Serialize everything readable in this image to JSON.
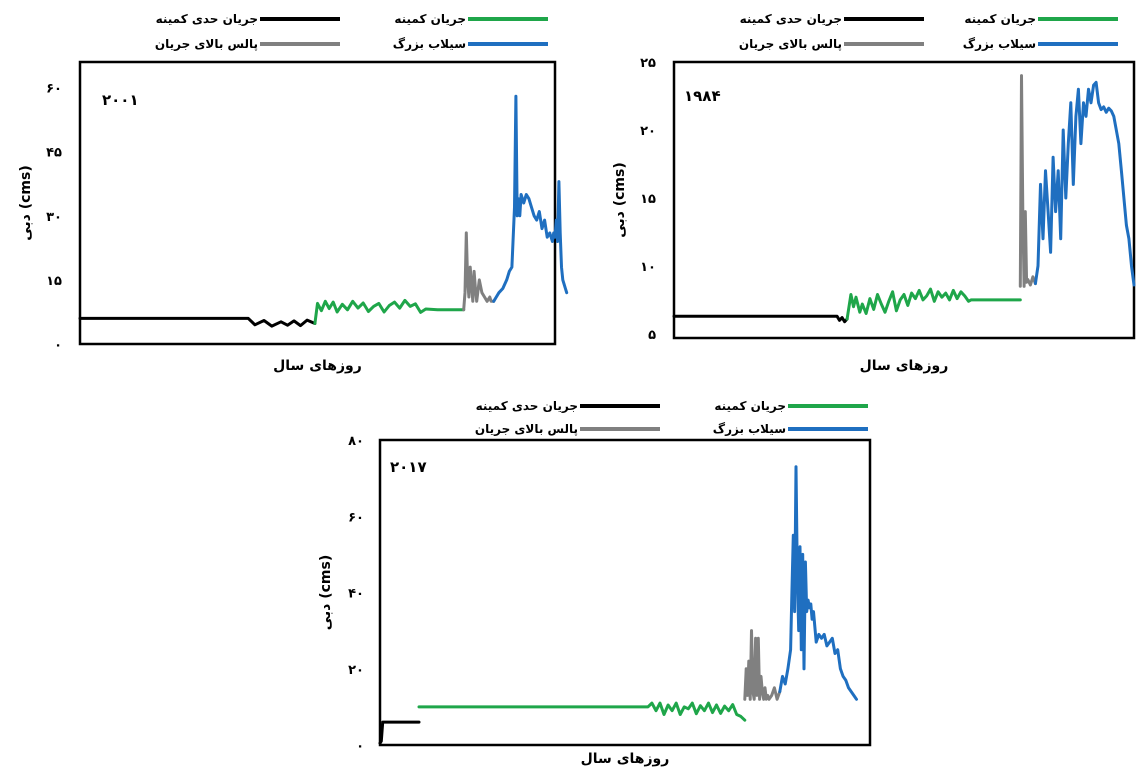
{
  "legend_labels": {
    "extreme_low": "جریان حدی کمینه",
    "low": "جریان کمینه",
    "high_pulse": "پالس بالای جریان",
    "large_flood": "سیلاب بزرگ"
  },
  "colors": {
    "extreme_low": "#000000",
    "low": "#1fa64a",
    "high_pulse": "#808080",
    "large_flood": "#1f6fc0"
  },
  "chart_data": [
    {
      "type": "line",
      "year_label": "۲۰۰۱",
      "title": "",
      "xlabel": "روزهای سال",
      "ylabel": "دبی (cms)",
      "ylim": [
        0,
        66
      ],
      "y_ticks": [
        0,
        15,
        30,
        45,
        60
      ],
      "y_tick_labels": [
        "۰",
        "۱۵",
        "۳۰",
        "۴۵",
        "۶۰"
      ],
      "xlim": [
        1,
        365
      ],
      "grid": false,
      "legend_position": "top",
      "series": [
        {
          "key": "extreme_low",
          "x": [
            1,
            130,
            135,
            142,
            148,
            155,
            160,
            165,
            170,
            175,
            181
          ],
          "y": [
            6,
            6,
            4.5,
            5.5,
            4.2,
            5.2,
            4.4,
            5.4,
            4.3,
            5.6,
            4.8
          ]
        },
        {
          "key": "low",
          "x": [
            181,
            183,
            186,
            189,
            192,
            195,
            198,
            202,
            206,
            210,
            214,
            218,
            222,
            226,
            230,
            234,
            238,
            242,
            246,
            250,
            254,
            258,
            262,
            266,
            275,
            290,
            295
          ],
          "y": [
            4.8,
            9.5,
            7.8,
            10,
            8.3,
            9.8,
            7.5,
            9.3,
            8,
            10,
            8.4,
            9.6,
            7.6,
            8.8,
            9.5,
            7.5,
            9,
            9.8,
            8.4,
            10.2,
            8.8,
            9.4,
            7.4,
            8.2,
            8,
            8,
            8
          ]
        },
        {
          "key": "high_pulse",
          "x": [
            295,
            296,
            297,
            298,
            299,
            300,
            301,
            302,
            303,
            304,
            305,
            307,
            309,
            311,
            313,
            315,
            316,
            318
          ],
          "y": [
            8,
            12,
            26,
            15,
            11,
            18,
            14,
            10,
            17,
            13,
            10,
            15,
            12,
            11,
            10,
            11,
            10,
            10
          ]
        },
        {
          "key": "large_flood",
          "x": [
            318,
            320,
            322,
            325,
            328,
            330,
            332,
            334,
            335,
            336,
            337,
            338,
            339,
            341,
            343,
            345,
            347,
            349,
            351,
            353,
            355,
            357,
            359,
            361,
            363,
            364,
            365,
            366,
            367,
            368,
            369,
            370,
            371,
            372,
            373,
            374
          ],
          "y": [
            10,
            11,
            12,
            13,
            15,
            17,
            18,
            32,
            58,
            30,
            34,
            30,
            35,
            33,
            35,
            34,
            32,
            30,
            29,
            31,
            27,
            29,
            25,
            26,
            24,
            26,
            25,
            29,
            24,
            38,
            26,
            18,
            15,
            14,
            13,
            12
          ]
        }
      ]
    },
    {
      "type": "line",
      "year_label": "۱۹۸۴",
      "title": "",
      "xlabel": "روزهای سال",
      "ylabel": "دبی (cms)",
      "ylim": [
        4.7,
        25
      ],
      "y_ticks": [
        5,
        10,
        15,
        20,
        25
      ],
      "y_tick_labels": [
        "۵",
        "۱۰",
        "۱۵",
        "۲۰",
        "۲۵"
      ],
      "xlim": [
        1,
        365
      ],
      "grid": false,
      "legend_position": "top",
      "series": [
        {
          "key": "extreme_low",
          "x": [
            1,
            130,
            132,
            134,
            136,
            138
          ],
          "y": [
            6.3,
            6.3,
            6.0,
            6.2,
            5.9,
            6.1
          ]
        },
        {
          "key": "low",
          "x": [
            138,
            141,
            143,
            145,
            148,
            150,
            153,
            156,
            159,
            162,
            165,
            168,
            171,
            174,
            177,
            180,
            183,
            186,
            189,
            192,
            195,
            198,
            201,
            204,
            207,
            210,
            213,
            216,
            219,
            222,
            225,
            228,
            231,
            234,
            236,
            245,
            275
          ],
          "y": [
            6.1,
            7.9,
            7.0,
            7.7,
            6.6,
            7.2,
            6.5,
            7.6,
            6.8,
            7.9,
            7.2,
            6.6,
            7.4,
            8.1,
            6.7,
            7.5,
            7.9,
            7.1,
            8.0,
            7.6,
            8.2,
            7.5,
            7.8,
            8.3,
            7.4,
            8.1,
            7.7,
            8.0,
            7.5,
            8.2,
            7.6,
            8.1,
            7.8,
            7.4,
            7.5,
            7.5,
            7.5
          ]
        },
        {
          "key": "high_pulse",
          "x": [
            275,
            276,
            277,
            278,
            279,
            280,
            281,
            283,
            285,
            287
          ],
          "y": [
            8.5,
            24,
            14,
            8.5,
            14,
            8.8,
            9.0,
            8.6,
            9.2,
            8.7
          ]
        },
        {
          "key": "large_flood",
          "x": [
            287,
            289,
            291,
            293,
            295,
            297,
            299,
            301,
            303,
            305,
            307,
            309,
            311,
            313,
            315,
            317,
            319,
            321,
            323,
            325,
            327,
            329,
            331,
            333,
            335,
            337,
            339,
            341,
            343,
            345,
            347,
            349,
            351,
            353,
            355,
            357,
            359,
            361,
            363,
            365
          ],
          "y": [
            8.7,
            10,
            16,
            12,
            17,
            14,
            11,
            18,
            14,
            17,
            12,
            20,
            15,
            19,
            22,
            16,
            21,
            23,
            19,
            22,
            21,
            23,
            22,
            23.3,
            23.5,
            22,
            21.5,
            21.7,
            21.3,
            21.6,
            21.4,
            21,
            20,
            19,
            17,
            15,
            13,
            12,
            10,
            8.6
          ]
        }
      ]
    },
    {
      "type": "line",
      "year_label": "۲۰۱۷",
      "title": "",
      "xlabel": "روزهای سال",
      "ylabel": "دبی (cms)",
      "ylim": [
        0,
        80
      ],
      "y_ticks": [
        0,
        20,
        40,
        60,
        80
      ],
      "y_tick_labels": [
        "۰",
        "۲۰",
        "۴۰",
        "۶۰",
        "۸۰"
      ],
      "xlim": [
        1,
        365
      ],
      "grid": false,
      "legend_position": "top",
      "series": [
        {
          "key": "extreme_low",
          "x": [
            1,
            2,
            3,
            30
          ],
          "y": [
            0.5,
            1,
            6,
            6
          ]
        },
        {
          "key": "low",
          "x": [
            30,
            120,
            200,
            203,
            206,
            209,
            212,
            215,
            218,
            221,
            224,
            227,
            230,
            233,
            236,
            239,
            242,
            245,
            248,
            251,
            254,
            257,
            260,
            263,
            266,
            269,
            272
          ],
          "y": [
            10,
            10,
            10,
            11,
            9,
            11,
            8,
            10.5,
            9,
            11,
            8,
            10,
            9.5,
            11,
            8.2,
            10.3,
            9,
            11,
            8.5,
            10.5,
            8.3,
            10.2,
            9,
            10.6,
            8,
            7.5,
            6.5
          ]
        },
        {
          "key": "high_pulse",
          "x": [
            272,
            273,
            274,
            275,
            276,
            277,
            278,
            279,
            280,
            281,
            282,
            283,
            284,
            285,
            286,
            287,
            288,
            289,
            290,
            292,
            294,
            296,
            298
          ],
          "y": [
            12,
            20,
            13,
            22,
            12,
            30,
            14,
            12,
            28,
            13,
            28,
            12,
            18,
            14,
            12,
            15,
            12,
            13,
            12,
            13,
            15,
            12,
            14
          ]
        },
        {
          "key": "large_flood",
          "x": [
            298,
            300,
            302,
            304,
            306,
            307,
            308,
            309,
            310,
            311,
            312,
            313,
            314,
            315,
            316,
            317,
            318,
            319,
            320,
            321,
            322,
            323,
            325,
            327,
            329,
            331,
            333,
            335,
            337,
            339,
            341,
            343,
            345,
            347,
            349,
            351,
            353,
            355
          ],
          "y": [
            14,
            18,
            16,
            20,
            25,
            40,
            55,
            35,
            73,
            45,
            30,
            52,
            25,
            50,
            20,
            48,
            35,
            38,
            36,
            37,
            33,
            35,
            27,
            29,
            28,
            29,
            26,
            27,
            28,
            24,
            25,
            20,
            18,
            17,
            15,
            14,
            13,
            12
          ]
        }
      ]
    }
  ]
}
